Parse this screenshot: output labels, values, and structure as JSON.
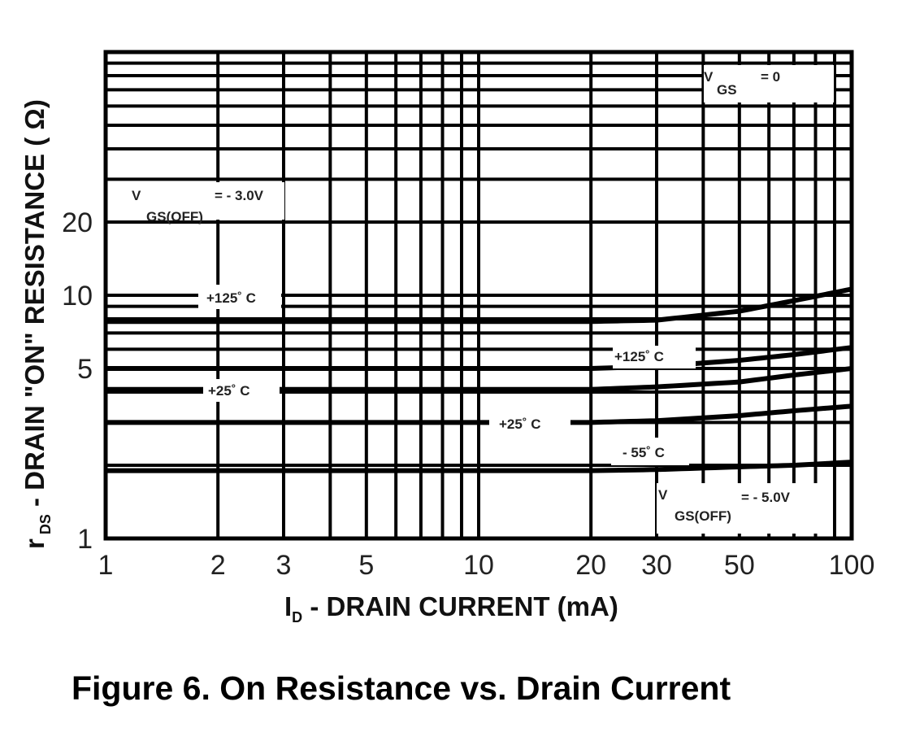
{
  "chart_data": {
    "type": "line",
    "title": "Figure 6. On Resistance vs. Drain Current",
    "xlabel": {
      "main": "I",
      "sub": "D",
      "rest": " - DRAIN CURRENT  (mA)"
    },
    "ylabel": {
      "main": "r",
      "sub": " DS",
      "rest": " - DRAIN \"ON\" RESISTANCE ( Ω)"
    },
    "xscale": "log",
    "yscale": "log",
    "xlim": [
      1,
      100
    ],
    "ylim": [
      1,
      100
    ],
    "grid": true,
    "xticks": [
      "1",
      "2",
      "3",
      "5",
      "10",
      "20",
      "30",
      "50",
      "100"
    ],
    "yticks": [
      "1",
      "5",
      "10",
      "20"
    ],
    "x": [
      1,
      10,
      20,
      30,
      50,
      70,
      100
    ],
    "series": [
      {
        "name": "VGS(OFF) = -3.0V, +125°C",
        "values": [
          7.8,
          7.8,
          7.8,
          7.9,
          8.6,
          9.5,
          10.6
        ]
      },
      {
        "name": "VGS(OFF) = -5.0V, +125°C",
        "values": [
          5.0,
          5.0,
          5.0,
          5.1,
          5.4,
          5.7,
          6.1
        ]
      },
      {
        "name": "VGS(OFF) = -3.0V, +25°C",
        "values": [
          4.1,
          4.1,
          4.1,
          4.2,
          4.4,
          4.7,
          5.0
        ]
      },
      {
        "name": "VGS(OFF) = -5.0V, +25°C",
        "values": [
          3.0,
          3.0,
          3.0,
          3.05,
          3.2,
          3.35,
          3.5
        ]
      },
      {
        "name": "VGS(OFF) = -5.0V, -55°C",
        "values": [
          1.9,
          1.9,
          1.9,
          1.92,
          1.97,
          2.0,
          2.06
        ]
      }
    ],
    "annotations": {
      "vgs_zero": {
        "v": "V",
        "sub": "GS",
        "eq": "=   0"
      },
      "vgs_off_3": {
        "v": "V",
        "sub": "GS(OFF)",
        "eq": "= - 3.0V"
      },
      "vgs_off_5": {
        "v": "V",
        "sub": "GS(OFF)",
        "eq": "= - 5.0V"
      },
      "t125_a": "+125˚ C",
      "t25_a": "+25˚ C",
      "t125_b": "+125˚ C",
      "t25_b": "+25˚ C",
      "t55": "- 55˚ C"
    }
  }
}
